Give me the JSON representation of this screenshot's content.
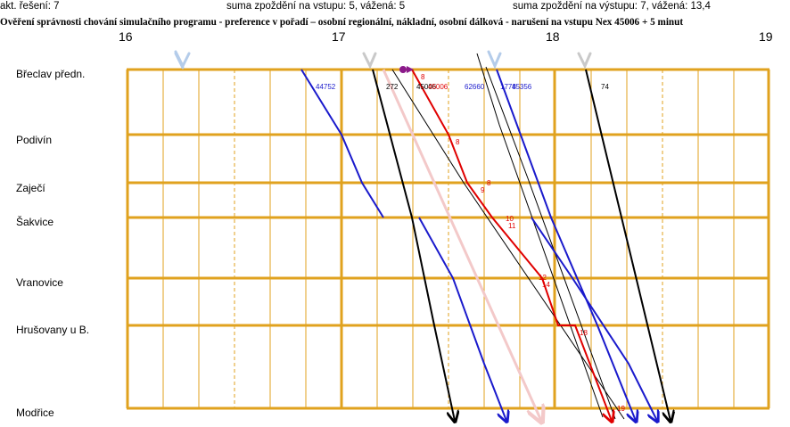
{
  "header": {
    "iteration": "akt. řešení: 7",
    "delay_in": "suma zpoždění na vstupu: 5,  vážená: 5",
    "delay_out": "suma zpoždění na výstupu: 7,  vážená: 13,4",
    "title": "Ověření správnosti chování simulačního programu - preference v pořadí – osobní regionální, nákladní, osobní dálková - narušení na vstupu Nex 45006 + 5 minut"
  },
  "hours": [
    "16",
    "17",
    "18",
    "19"
  ],
  "stations": [
    "Břeclav předn.",
    "Podivín",
    "Zaječí",
    "Šakvice",
    "Vranovice",
    "Hrušovany u B.",
    "Modřice"
  ],
  "train_labels": [
    "44752",
    "272",
    "45006",
    "45006",
    "62660",
    "1778",
    "45356",
    "74"
  ],
  "delay_labels": [
    "8",
    "8",
    "8",
    "9",
    "10",
    "11",
    "12",
    "14",
    "18",
    "19"
  ],
  "colors": {
    "grid": "#e0a21e",
    "passenger_regional": "#1a1acc",
    "long_distance": "#000000",
    "disturbed": "#e00000",
    "arrival_marker": "#b4ccea",
    "ghost": "#f3c9c9"
  }
}
